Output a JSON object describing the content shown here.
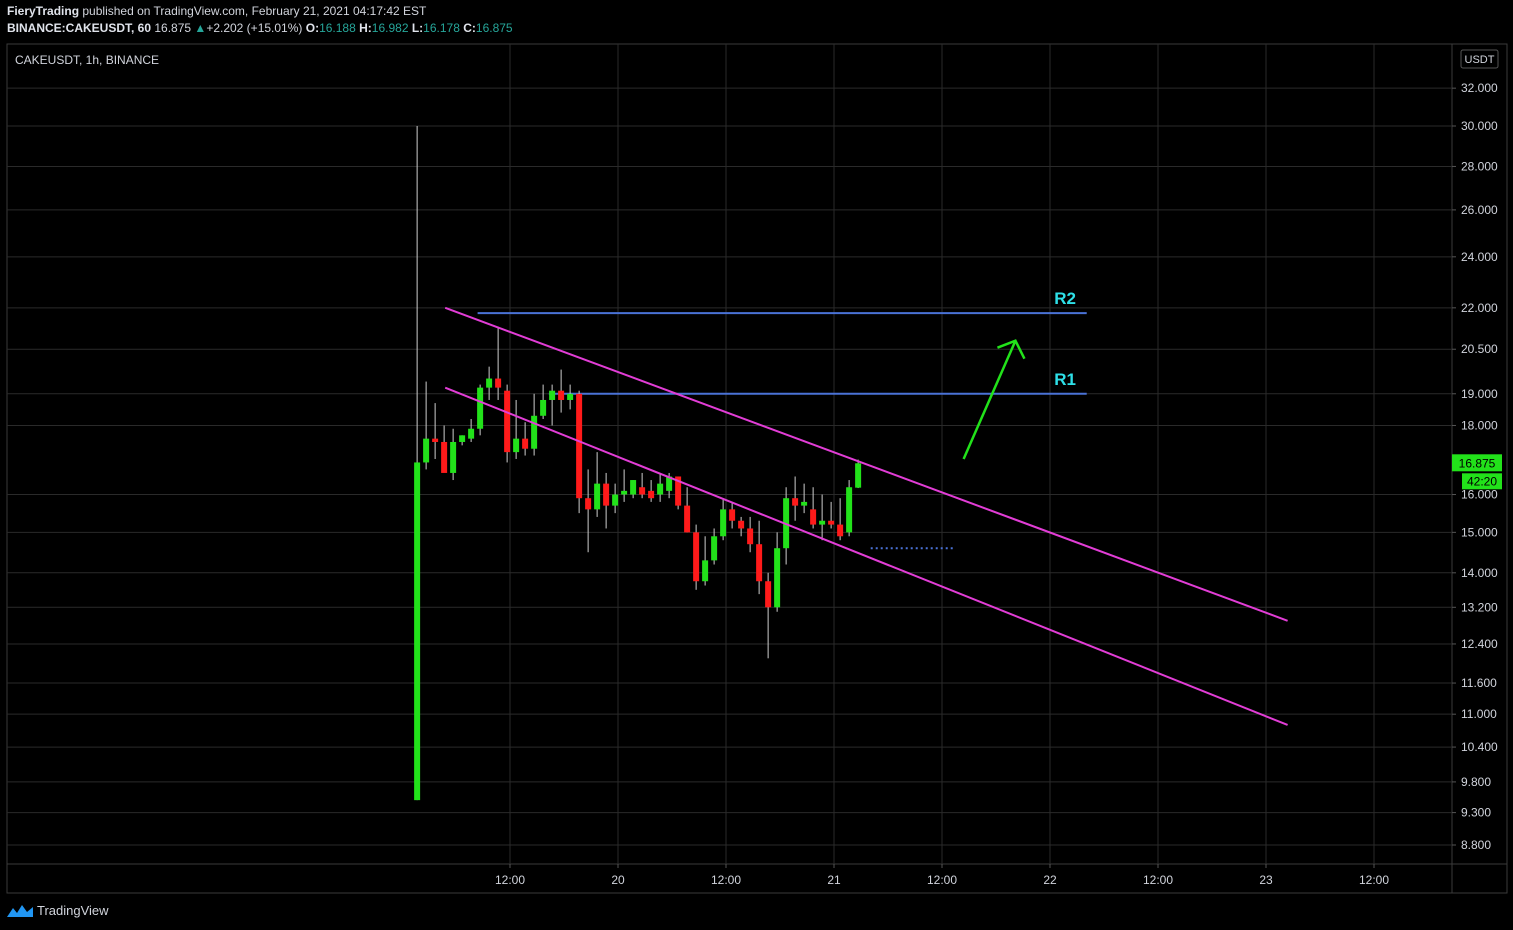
{
  "header": {
    "author": "FieryTrading",
    "published_text": "published on TradingView.com, February 21, 2021 04:17:42 EST",
    "symbol_line": "BINANCE:CAKEUSDT, 60",
    "last_price": "16.875",
    "change_arrow": "▲",
    "change_text": "+2.202 (+15.01%)",
    "o_label": "O:",
    "o_value": "16.188",
    "h_label": "H:",
    "h_value": "16.982",
    "l_label": "L:",
    "l_value": "16.178",
    "c_label": "C:",
    "c_value": "16.875"
  },
  "legend": {
    "text": "CAKEUSDT, 1h, BINANCE"
  },
  "footer": {
    "brand": "TradingView"
  },
  "colors": {
    "background": "#000000",
    "up_candle": "#22e21a",
    "down_candle": "#ff1a1a",
    "channel": "#e23dd6",
    "resistance": "#4a72d6",
    "arrow": "#22e21a",
    "label": "#2ee0e8",
    "grid": "#2a2a2a"
  },
  "chart_data": {
    "type": "candlestick",
    "currency_label": "USDT",
    "scale": "log",
    "y_ticks": [
      "32.000",
      "30.000",
      "28.000",
      "26.000",
      "24.000",
      "22.000",
      "20.500",
      "19.000",
      "18.000",
      "16.000",
      "15.000",
      "14.000",
      "13.200",
      "12.400",
      "11.600",
      "11.000",
      "10.400",
      "9.800",
      "9.300",
      "8.800"
    ],
    "x_ticks": [
      "12:00",
      "20",
      "12:00",
      "21",
      "12:00",
      "22",
      "12:00",
      "23",
      "12:00"
    ],
    "last_price_badge": "16.875",
    "countdown_badge": "42:20",
    "resistance_levels": [
      {
        "name": "R2",
        "value": 21.8
      },
      {
        "name": "R1",
        "value": 19.0
      }
    ],
    "candles": [
      {
        "o": 9.5,
        "h": 30.0,
        "l": 9.5,
        "c": 16.9
      },
      {
        "o": 16.9,
        "h": 19.4,
        "l": 16.7,
        "c": 17.6
      },
      {
        "o": 17.6,
        "h": 18.7,
        "l": 17.0,
        "c": 17.5
      },
      {
        "o": 17.5,
        "h": 18.0,
        "l": 16.8,
        "c": 16.6
      },
      {
        "o": 16.6,
        "h": 17.9,
        "l": 16.4,
        "c": 17.5
      },
      {
        "o": 17.5,
        "h": 17.7,
        "l": 17.4,
        "c": 17.7
      },
      {
        "o": 17.6,
        "h": 18.2,
        "l": 17.5,
        "c": 17.9
      },
      {
        "o": 17.9,
        "h": 19.3,
        "l": 17.7,
        "c": 19.2
      },
      {
        "o": 19.2,
        "h": 19.9,
        "l": 18.8,
        "c": 19.5
      },
      {
        "o": 19.5,
        "h": 21.3,
        "l": 18.8,
        "c": 19.2
      },
      {
        "o": 19.1,
        "h": 19.3,
        "l": 16.9,
        "c": 17.2
      },
      {
        "o": 17.2,
        "h": 18.8,
        "l": 17.0,
        "c": 17.6
      },
      {
        "o": 17.6,
        "h": 18.1,
        "l": 17.1,
        "c": 17.3
      },
      {
        "o": 17.3,
        "h": 19.0,
        "l": 17.1,
        "c": 18.3
      },
      {
        "o": 18.3,
        "h": 19.3,
        "l": 18.2,
        "c": 18.8
      },
      {
        "o": 18.8,
        "h": 19.3,
        "l": 18.0,
        "c": 19.1
      },
      {
        "o": 19.1,
        "h": 19.8,
        "l": 18.4,
        "c": 18.8
      },
      {
        "o": 18.8,
        "h": 19.3,
        "l": 18.5,
        "c": 19.0
      },
      {
        "o": 19.0,
        "h": 19.1,
        "l": 15.5,
        "c": 15.9
      },
      {
        "o": 15.9,
        "h": 16.7,
        "l": 14.5,
        "c": 15.6
      },
      {
        "o": 15.6,
        "h": 17.2,
        "l": 15.4,
        "c": 16.3
      },
      {
        "o": 16.3,
        "h": 16.6,
        "l": 15.1,
        "c": 15.7
      },
      {
        "o": 15.7,
        "h": 16.3,
        "l": 15.5,
        "c": 16.0
      },
      {
        "o": 16.0,
        "h": 16.7,
        "l": 15.8,
        "c": 16.1
      },
      {
        "o": 16.0,
        "h": 16.4,
        "l": 15.9,
        "c": 16.4
      },
      {
        "o": 16.2,
        "h": 16.6,
        "l": 15.9,
        "c": 16.0
      },
      {
        "o": 16.1,
        "h": 16.4,
        "l": 15.8,
        "c": 15.9
      },
      {
        "o": 16.0,
        "h": 16.6,
        "l": 15.8,
        "c": 16.3
      },
      {
        "o": 16.1,
        "h": 16.6,
        "l": 15.9,
        "c": 16.5
      },
      {
        "o": 16.5,
        "h": 16.5,
        "l": 15.6,
        "c": 15.7
      },
      {
        "o": 15.7,
        "h": 16.2,
        "l": 15.0,
        "c": 15.0
      },
      {
        "o": 15.0,
        "h": 15.2,
        "l": 13.6,
        "c": 13.8
      },
      {
        "o": 13.8,
        "h": 14.9,
        "l": 13.7,
        "c": 14.3
      },
      {
        "o": 14.3,
        "h": 15.1,
        "l": 14.2,
        "c": 14.9
      },
      {
        "o": 14.9,
        "h": 15.9,
        "l": 14.8,
        "c": 15.6
      },
      {
        "o": 15.6,
        "h": 15.8,
        "l": 15.1,
        "c": 15.3
      },
      {
        "o": 15.3,
        "h": 15.4,
        "l": 14.9,
        "c": 15.1
      },
      {
        "o": 15.1,
        "h": 15.4,
        "l": 14.5,
        "c": 14.7
      },
      {
        "o": 14.7,
        "h": 15.3,
        "l": 13.5,
        "c": 13.8
      },
      {
        "o": 13.8,
        "h": 14.0,
        "l": 12.1,
        "c": 13.2
      },
      {
        "o": 13.2,
        "h": 15.0,
        "l": 13.1,
        "c": 14.6
      },
      {
        "o": 14.6,
        "h": 16.2,
        "l": 14.2,
        "c": 15.9
      },
      {
        "o": 15.9,
        "h": 16.5,
        "l": 15.3,
        "c": 15.7
      },
      {
        "o": 15.7,
        "h": 16.3,
        "l": 15.5,
        "c": 15.8
      },
      {
        "o": 15.6,
        "h": 16.2,
        "l": 15.1,
        "c": 15.2
      },
      {
        "o": 15.2,
        "h": 16.0,
        "l": 14.8,
        "c": 15.3
      },
      {
        "o": 15.3,
        "h": 15.8,
        "l": 15.1,
        "c": 15.2
      },
      {
        "o": 15.2,
        "h": 15.9,
        "l": 14.8,
        "c": 14.9
      },
      {
        "o": 15.0,
        "h": 16.4,
        "l": 14.9,
        "c": 16.2
      },
      {
        "o": 16.188,
        "h": 16.982,
        "l": 16.178,
        "c": 16.875
      }
    ],
    "annotations": [
      {
        "type": "channel_line",
        "name": "upper",
        "from": [
          19.2,
          22.0
        ],
        "to": [
          23.1,
          12.9
        ]
      },
      {
        "type": "channel_line",
        "name": "lower",
        "from": [
          19.2,
          19.2
        ],
        "to": [
          23.1,
          10.8
        ]
      },
      {
        "type": "arrow",
        "direction": "up"
      },
      {
        "type": "dotted_level",
        "value": 14.6
      }
    ]
  }
}
